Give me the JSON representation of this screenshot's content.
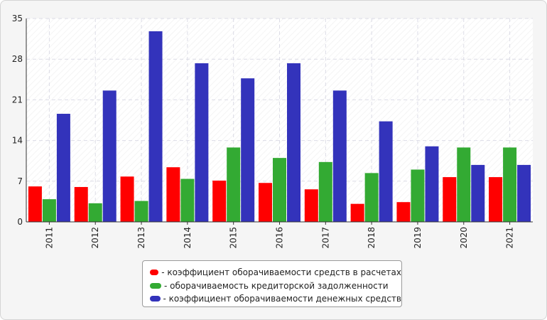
{
  "chart_data": {
    "type": "bar",
    "categories": [
      "2011",
      "2012",
      "2013",
      "2014",
      "2015",
      "2016",
      "2017",
      "2018",
      "2019",
      "2020",
      "2021"
    ],
    "series": [
      {
        "name": "- коэффициент оборачиваемости средств в расчетах",
        "color": "#ff0000",
        "values": [
          6.1,
          6.0,
          7.8,
          9.4,
          7.1,
          6.7,
          5.6,
          3.1,
          3.4,
          7.7,
          7.7
        ]
      },
      {
        "name": "- оборачиваемость кредиторской задолженности",
        "color": "#33aa33",
        "values": [
          3.9,
          3.2,
          3.6,
          7.4,
          12.8,
          11.0,
          10.3,
          8.4,
          9.0,
          12.8,
          12.8
        ]
      },
      {
        "name": "- коэффициент оборачиваемости денежных средств",
        "color": "#3333bb",
        "values": [
          18.6,
          22.6,
          32.8,
          27.3,
          24.7,
          27.3,
          22.6,
          17.3,
          13.0,
          9.8,
          9.8
        ]
      }
    ],
    "yticks": [
      "0",
      "7",
      "14",
      "21",
      "28",
      "35"
    ],
    "ylim": [
      0,
      35
    ],
    "grid": true,
    "legend": "bottom-center"
  }
}
